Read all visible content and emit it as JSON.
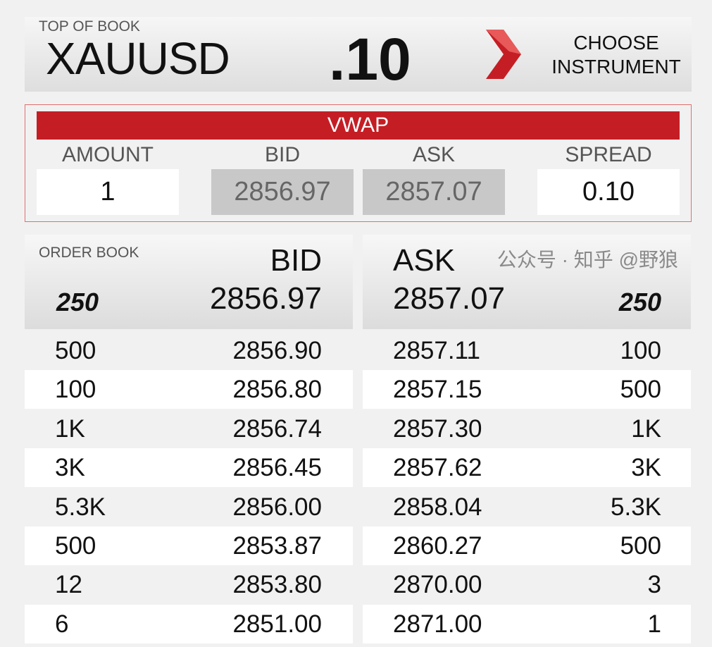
{
  "header": {
    "label": "TOP OF BOOK",
    "symbol": "XAUUSD",
    "pips": ".10",
    "choose_line1": "CHOOSE",
    "choose_line2": "INSTRUMENT",
    "accent": "#c41e24"
  },
  "vwap": {
    "title": "VWAP",
    "amount_label": "AMOUNT",
    "bid_label": "BID",
    "ask_label": "ASK",
    "spread_label": "SPREAD",
    "amount": "1",
    "bid": "2856.97",
    "ask": "2857.07",
    "spread": "0.10"
  },
  "order_book": {
    "label": "ORDER BOOK",
    "bid_label": "BID",
    "ask_label": "ASK",
    "top_bid_size": "250",
    "top_bid": "2856.97",
    "top_ask": "2857.07",
    "top_ask_size": "250",
    "rows": [
      {
        "bid_size": "500",
        "bid": "2856.90",
        "ask": "2857.11",
        "ask_size": "100"
      },
      {
        "bid_size": "100",
        "bid": "2856.80",
        "ask": "2857.15",
        "ask_size": "500"
      },
      {
        "bid_size": "1K",
        "bid": "2856.74",
        "ask": "2857.30",
        "ask_size": "1K"
      },
      {
        "bid_size": "3K",
        "bid": "2856.45",
        "ask": "2857.62",
        "ask_size": "3K"
      },
      {
        "bid_size": "5.3K",
        "bid": "2856.00",
        "ask": "2858.04",
        "ask_size": "5.3K"
      },
      {
        "bid_size": "500",
        "bid": "2853.87",
        "ask": "2860.27",
        "ask_size": "500"
      },
      {
        "bid_size": "12",
        "bid": "2853.80",
        "ask": "2870.00",
        "ask_size": "3"
      },
      {
        "bid_size": "6",
        "bid": "2851.00",
        "ask": "2871.00",
        "ask_size": "1"
      }
    ]
  },
  "watermark": "公众号 · 知乎 @野狼"
}
